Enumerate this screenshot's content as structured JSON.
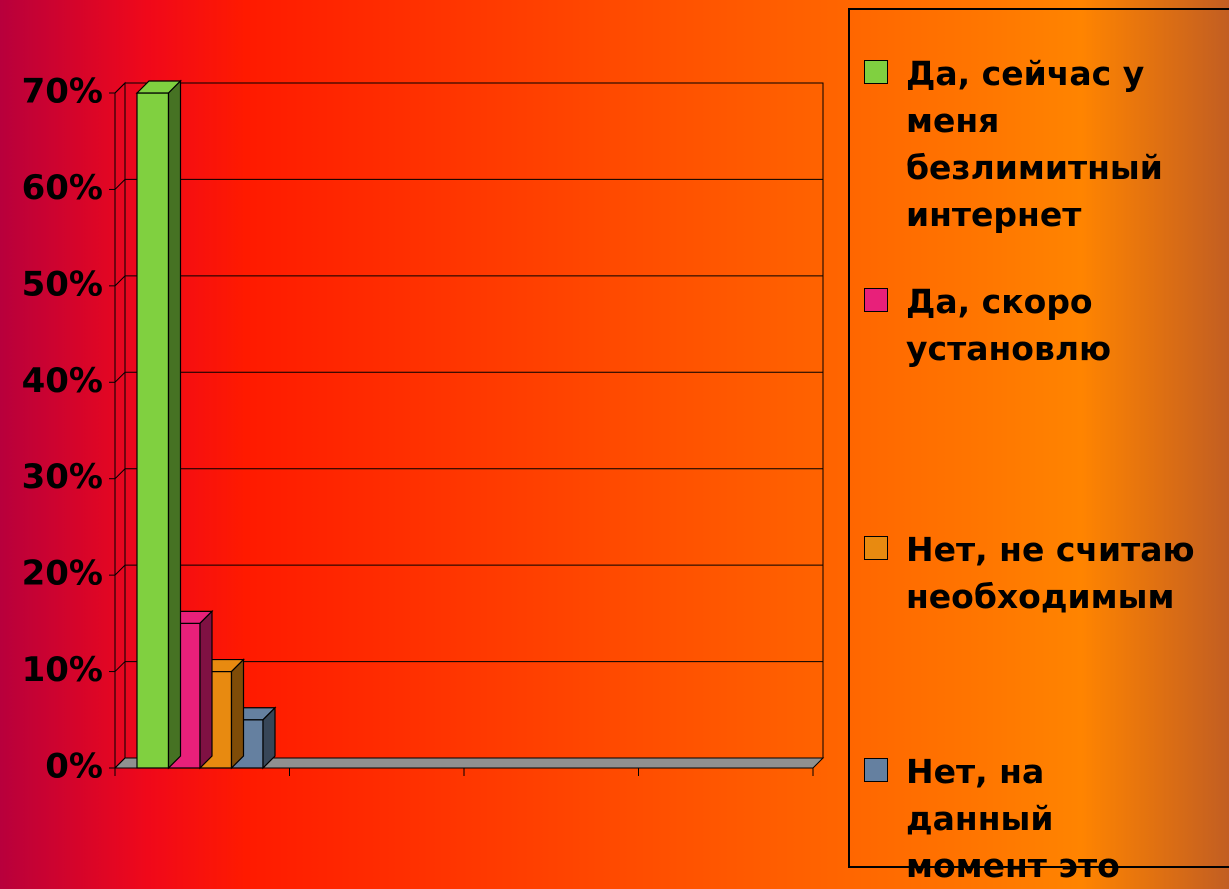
{
  "chart_data": {
    "type": "bar3d",
    "categories": [
      null,
      null,
      null,
      null
    ],
    "series": [
      {
        "name": "Да, сейчас у меня безлимитный интернет",
        "color": "#80d040",
        "values": [
          70,
          null,
          null,
          null
        ]
      },
      {
        "name": "Да, скоро установлю",
        "color": "#e8207a",
        "values": [
          15,
          null,
          null,
          null
        ]
      },
      {
        "name": "Нет, не считаю необходимым",
        "color": "#e88a10",
        "values": [
          10,
          null,
          null,
          null
        ]
      },
      {
        "name": "Нет, на данный момент это",
        "color": "#6580a0",
        "values": [
          5,
          null,
          null,
          null
        ]
      }
    ],
    "ylim": [
      0,
      70
    ],
    "yticks": [
      {
        "value": 0,
        "label": "0%"
      },
      {
        "value": 10,
        "label": "10%"
      },
      {
        "value": 20,
        "label": "20%"
      },
      {
        "value": 30,
        "label": "30%"
      },
      {
        "value": 40,
        "label": "40%"
      },
      {
        "value": 50,
        "label": "50%"
      },
      {
        "value": 60,
        "label": "60%"
      },
      {
        "value": 70,
        "label": "70%"
      }
    ],
    "grid": true,
    "legend": "right"
  }
}
